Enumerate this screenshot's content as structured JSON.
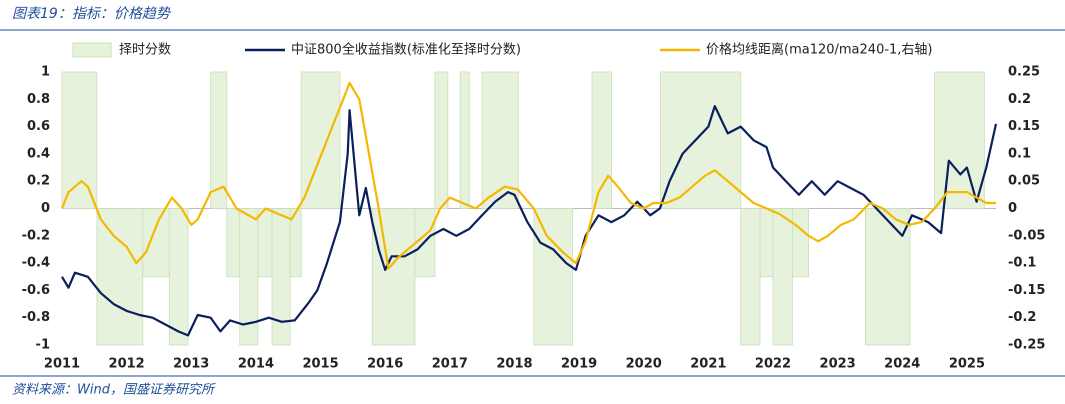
{
  "chart_data": {
    "type": "line",
    "title": "图表19：指标：价格趋势",
    "source": "资料来源：Wind，国盛证券研究所",
    "xlim": [
      2011,
      2025.45
    ],
    "xticks": [
      2011,
      2012,
      2013,
      2014,
      2015,
      2016,
      2017,
      2018,
      2019,
      2020,
      2021,
      2022,
      2023,
      2024,
      2025
    ],
    "ylim": [
      -1,
      1
    ],
    "yticks": [
      -1,
      -0.8,
      -0.6,
      -0.4,
      -0.2,
      0,
      0.2,
      0.4,
      0.6,
      0.8,
      1
    ],
    "y2lim": [
      -0.25,
      0.25
    ],
    "y2ticks": [
      -0.25,
      -0.2,
      -0.15,
      -0.1,
      -0.05,
      0,
      0.05,
      0.1,
      0.15,
      0.2,
      0.25
    ],
    "series": [
      {
        "name": "择时分数",
        "style": "step-area",
        "color": "#e6f2dc",
        "x": [
          2011.0,
          2011.54,
          2012.25,
          2012.66,
          2012.95,
          2013.3,
          2013.55,
          2013.75,
          2014.03,
          2014.25,
          2014.53,
          2014.7,
          2015.3,
          2015.8,
          2016.46,
          2016.77,
          2016.97,
          2017.16,
          2017.3,
          2017.5,
          2018.06,
          2018.3,
          2018.9,
          2019.2,
          2019.5,
          2020.26,
          2021.5,
          2021.8,
          2022.0,
          2022.3,
          2022.55,
          2023.43,
          2024.12,
          2024.5,
          2025.27
        ],
        "values": [
          1,
          -1,
          -0.5,
          -1,
          0,
          1,
          -0.5,
          -1,
          -0.5,
          -1,
          -0.5,
          1,
          0,
          -1,
          -0.5,
          1,
          0,
          1,
          0,
          1,
          0,
          -1,
          0,
          1,
          0,
          1,
          -1,
          -0.5,
          -1,
          -0.5,
          0,
          -1,
          0,
          1,
          0
        ]
      },
      {
        "name": "中证800全收益指数(标准化至择时分数)",
        "color": "#0a1f5c",
        "x": [
          2011.0,
          2011.1,
          2011.2,
          2011.4,
          2011.6,
          2011.8,
          2012.0,
          2012.2,
          2012.4,
          2012.6,
          2012.8,
          2012.95,
          2013.1,
          2013.3,
          2013.45,
          2013.6,
          2013.8,
          2014.0,
          2014.2,
          2014.4,
          2014.6,
          2014.8,
          2014.95,
          2015.1,
          2015.3,
          2015.42,
          2015.45,
          2015.55,
          2015.6,
          2015.7,
          2015.8,
          2015.9,
          2016.0,
          2016.1,
          2016.3,
          2016.5,
          2016.7,
          2016.9,
          2017.1,
          2017.3,
          2017.5,
          2017.7,
          2017.9,
          2018.0,
          2018.2,
          2018.4,
          2018.6,
          2018.8,
          2018.95,
          2019.1,
          2019.3,
          2019.5,
          2019.7,
          2019.9,
          2020.1,
          2020.25,
          2020.4,
          2020.6,
          2020.8,
          2021.0,
          2021.1,
          2021.3,
          2021.5,
          2021.7,
          2021.9,
          2022.0,
          2022.2,
          2022.4,
          2022.6,
          2022.8,
          2023.0,
          2023.2,
          2023.4,
          2023.6,
          2023.8,
          2024.0,
          2024.15,
          2024.4,
          2024.6,
          2024.72,
          2024.9,
          2025.0,
          2025.15,
          2025.3,
          2025.45
        ],
        "values": [
          -0.5,
          -0.58,
          -0.47,
          -0.5,
          -0.62,
          -0.7,
          -0.75,
          -0.78,
          -0.8,
          -0.85,
          -0.9,
          -0.93,
          -0.78,
          -0.8,
          -0.9,
          -0.82,
          -0.85,
          -0.83,
          -0.8,
          -0.83,
          -0.82,
          -0.7,
          -0.6,
          -0.4,
          -0.1,
          0.4,
          0.72,
          0.2,
          -0.05,
          0.15,
          -0.1,
          -0.3,
          -0.45,
          -0.35,
          -0.35,
          -0.3,
          -0.2,
          -0.15,
          -0.2,
          -0.15,
          -0.05,
          0.05,
          0.12,
          0.1,
          -0.1,
          -0.25,
          -0.3,
          -0.4,
          -0.45,
          -0.2,
          -0.05,
          -0.1,
          -0.05,
          0.05,
          -0.05,
          0.0,
          0.2,
          0.4,
          0.5,
          0.6,
          0.75,
          0.55,
          0.6,
          0.5,
          0.45,
          0.3,
          0.2,
          0.1,
          0.2,
          0.1,
          0.2,
          0.15,
          0.1,
          0.0,
          -0.1,
          -0.2,
          -0.05,
          -0.1,
          -0.18,
          0.35,
          0.25,
          0.3,
          0.05,
          0.3,
          0.62
        ]
      },
      {
        "name": "价格均线距离(ma120/ma240-1,右轴)",
        "color": "#f5b800",
        "axis": "y2",
        "x": [
          2011.0,
          2011.1,
          2011.3,
          2011.4,
          2011.6,
          2011.8,
          2012.0,
          2012.15,
          2012.3,
          2012.5,
          2012.7,
          2012.85,
          2013.0,
          2013.1,
          2013.3,
          2013.5,
          2013.7,
          2013.85,
          2014.0,
          2014.15,
          2014.35,
          2014.55,
          2014.75,
          2014.95,
          2015.15,
          2015.35,
          2015.45,
          2015.6,
          2015.75,
          2015.9,
          2016.05,
          2016.2,
          2016.5,
          2016.7,
          2016.85,
          2017.0,
          2017.2,
          2017.4,
          2017.6,
          2017.85,
          2018.05,
          2018.3,
          2018.5,
          2018.75,
          2018.95,
          2019.1,
          2019.3,
          2019.45,
          2019.6,
          2019.8,
          2020.0,
          2020.15,
          2020.35,
          2020.55,
          2020.75,
          2020.95,
          2021.1,
          2021.3,
          2021.5,
          2021.7,
          2021.9,
          2022.1,
          2022.35,
          2022.55,
          2022.7,
          2022.85,
          2023.05,
          2023.25,
          2023.5,
          2023.7,
          2023.9,
          2024.1,
          2024.3,
          2024.5,
          2024.7,
          2024.85,
          2025.0,
          2025.15,
          2025.3,
          2025.45
        ],
        "values": [
          0.0,
          0.03,
          0.05,
          0.04,
          -0.02,
          -0.05,
          -0.07,
          -0.1,
          -0.08,
          -0.02,
          0.02,
          0.0,
          -0.03,
          -0.02,
          0.03,
          0.04,
          0.0,
          -0.01,
          -0.02,
          0.0,
          -0.01,
          -0.02,
          0.02,
          0.08,
          0.14,
          0.2,
          0.23,
          0.2,
          0.1,
          0.0,
          -0.11,
          -0.09,
          -0.06,
          -0.04,
          0.0,
          0.02,
          0.01,
          0.0,
          0.02,
          0.04,
          0.035,
          0.0,
          -0.05,
          -0.08,
          -0.1,
          -0.06,
          0.03,
          0.06,
          0.04,
          0.01,
          0.0,
          0.01,
          0.01,
          0.02,
          0.04,
          0.06,
          0.07,
          0.05,
          0.03,
          0.01,
          0.0,
          -0.01,
          -0.03,
          -0.05,
          -0.06,
          -0.05,
          -0.03,
          -0.02,
          0.01,
          0.0,
          -0.02,
          -0.03,
          -0.025,
          0.0,
          0.03,
          0.03,
          0.03,
          0.02,
          0.01,
          0.01
        ]
      }
    ]
  }
}
